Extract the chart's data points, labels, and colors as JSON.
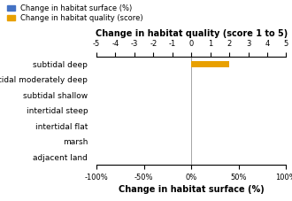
{
  "categories": [
    "subtidal deep",
    "subtidal moderately deep",
    "subtidal shallow",
    "intertidal steep",
    "intertidal flat",
    "marsh",
    "adjacent land"
  ],
  "quality_values": [
    2.0,
    0,
    0,
    0,
    0,
    0,
    0
  ],
  "surface_values": [
    0,
    0,
    0,
    0,
    0,
    0,
    0
  ],
  "bar_color_quality": "#E8A000",
  "bar_color_surface": "#4472C4",
  "top_xlabel": "Change in habitat quality (score 1 to 5)",
  "bottom_xlabel": "Change in habitat surface (%)",
  "quality_xlim": [
    -5,
    5
  ],
  "surface_xlim": [
    -1.0,
    1.0
  ],
  "quality_ticks": [
    -5,
    -4,
    -3,
    -2,
    -1,
    0,
    1,
    2,
    3,
    4,
    5
  ],
  "quality_tick_labels": [
    "-5",
    "-4",
    "-3",
    "-2",
    "-1",
    "0",
    "1",
    "2",
    "3",
    "4",
    "5"
  ],
  "surface_ticks": [
    -1.0,
    -0.5,
    0.0,
    0.5,
    1.0
  ],
  "surface_tick_labels": [
    "-100%",
    "-50%",
    "0%",
    "50%",
    "100%"
  ],
  "legend_labels": [
    "Change in habitat surface (%)",
    "Change in habitat quality (score)"
  ],
  "legend_colors": [
    "#4472C4",
    "#E8A000"
  ],
  "background_color": "#ffffff",
  "bar_height": 0.4,
  "figwidth": 3.3,
  "figheight": 2.27,
  "dpi": 100
}
